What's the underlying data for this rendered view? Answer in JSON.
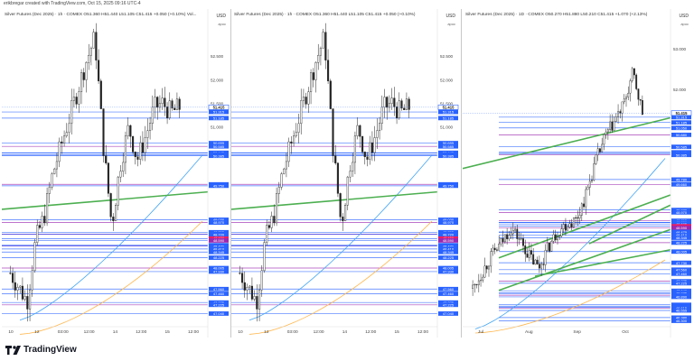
{
  "header": {
    "caption": "erikbregar created with TradingView.com, Oct 15, 2025 09:16 UTC-4"
  },
  "logo": {
    "text": "TradingView"
  },
  "colors": {
    "up": "#222222",
    "down": "#222222",
    "green": "#4caf50",
    "purple": "#9c27b0",
    "blue": "#2962ff",
    "ma": "#42a5f5",
    "orange": "#ffb74d",
    "price": "#ffffff"
  },
  "chart_data": [
    {
      "type": "candlestick",
      "title": "Silver Futures (Dec 2025) · 1h · COMEX  O51.360  H51.440  L51.105  C51.415  +0.050 (+0.10%)  Vol...",
      "currency": "USD",
      "currency_sub": "apoc",
      "x_ticks": [
        "10",
        "12",
        "03:00",
        "12:00",
        "14",
        "12:00",
        "15",
        "12:00"
      ],
      "y_ticks": [
        "52.500",
        "52.000",
        "51.500",
        "51.000"
      ],
      "ylim": [
        46.8,
        53.0
      ],
      "price_label": "51.415",
      "levels": [
        "51.315",
        "51.185",
        "50.655",
        "50.585",
        "50.450",
        "50.445",
        "50.410",
        "50.385",
        "49.780",
        "49.750",
        "49.030",
        "48.970",
        "48.765",
        "48.725",
        "48.720",
        "48.630",
        "48.590",
        "48.490",
        "48.475",
        "48.471",
        "48.410",
        "48.345",
        "48.225",
        "48.005",
        "47.930",
        "47.560",
        "47.460",
        "47.275",
        "47.225",
        "47.040"
      ]
    },
    {
      "type": "candlestick",
      "title": "Silver Futures (Dec 2025) · 1h · COMEX  O51.360  H51.440  L51.105  C51.415  +0.050 (+0.10%)",
      "currency": "USD",
      "currency_sub": "apoc",
      "x_ticks": [
        "10",
        "12",
        "03:00",
        "12:00",
        "14",
        "12:00",
        "15",
        "12:00"
      ],
      "y_ticks": [
        "52.500",
        "52.000",
        "51.500",
        "51.000"
      ],
      "ylim": [
        46.8,
        53.0
      ],
      "price_label": "51.415",
      "levels": [
        "51.315",
        "51.185",
        "50.655",
        "50.585",
        "50.450",
        "50.445",
        "50.410",
        "50.385",
        "49.780",
        "49.750",
        "49.030",
        "48.970",
        "48.765",
        "48.725",
        "48.720",
        "48.630",
        "48.590",
        "48.490",
        "48.475",
        "48.471",
        "48.410",
        "48.345",
        "48.225",
        "48.005",
        "47.930",
        "47.560",
        "47.460",
        "47.275",
        "47.225",
        "47.040"
      ]
    },
    {
      "type": "candlestick",
      "title": "Silver Futures (Dec 2025) · 1D · COMEX  O50.270  H51.880  L50.210  C51.415  +1.070 (+2.13%)",
      "currency": "USD",
      "currency_sub": "apoc",
      "x_ticks": [
        "Jul",
        "Aug",
        "Sep",
        "Oct"
      ],
      "y_ticks": [
        "53.000",
        "52.000"
      ],
      "ylim": [
        46.2,
        53.4
      ],
      "price_label": "51.415",
      "levels": [
        "51.315",
        "51.185",
        "51.050",
        "50.880",
        "50.585",
        "50.450",
        "50.445",
        "50.410",
        "50.385",
        "49.780",
        "49.660",
        "49.030",
        "48.970",
        "48.765",
        "48.725",
        "48.720",
        "48.685",
        "48.630",
        "48.590",
        "48.490",
        "48.475",
        "48.410",
        "48.345",
        "48.225",
        "48.005",
        "47.730",
        "47.560",
        "47.460",
        "47.275",
        "47.225",
        "47.040",
        "46.990",
        "46.975",
        "46.930",
        "46.890",
        "46.695",
        "46.660",
        "46.630",
        "46.615",
        "46.555",
        "46.380",
        "46.300"
      ]
    }
  ]
}
